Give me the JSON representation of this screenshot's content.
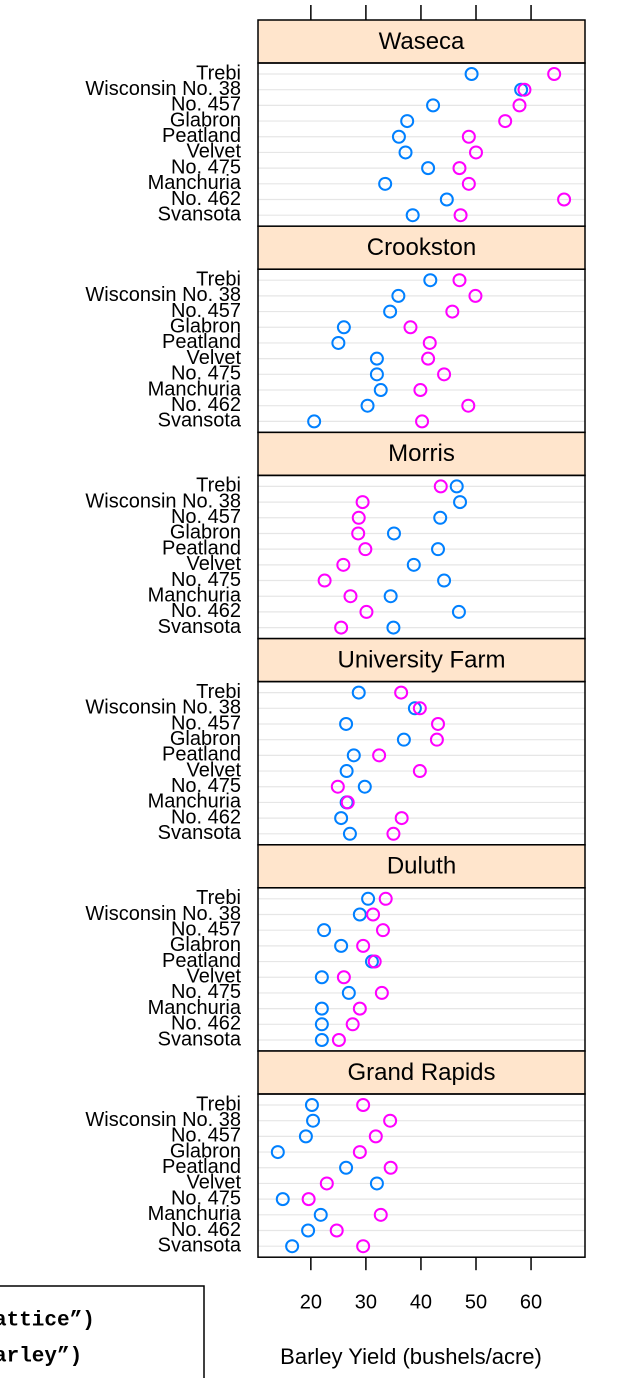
{
  "chart_data": {
    "type": "dotplot",
    "xlabel": "Barley Yield (bushels/acre)",
    "xlim": [
      10.4,
      69.8
    ],
    "xticks": [
      20,
      30,
      40,
      50,
      60
    ],
    "categories": [
      "Trebi",
      "Wisconsin No. 38",
      "No. 457",
      "Glabron",
      "Peatland",
      "Velvet",
      "No. 475",
      "Manchuria",
      "No. 462",
      "Svansota"
    ],
    "strip_color": "#ffe5cc",
    "grid": true,
    "panels": [
      {
        "title": "Waseca",
        "series": [
          {
            "color": "#0080ff",
            "values": [
              49.2,
              58.2,
              42.2,
              37.5,
              36,
              37.2,
              41.3,
              33.5,
              44.7,
              38.5
            ]
          },
          {
            "color": "#ff00ff",
            "values": [
              64.2,
              58.8,
              57.9,
              55.3,
              48.7,
              50,
              47,
              48.7,
              66,
              47.2
            ]
          }
        ]
      },
      {
        "title": "Crookston",
        "series": [
          {
            "color": "#0080ff",
            "values": [
              41.7,
              35.9,
              34.4,
              26,
              25,
              32,
              32,
              32.7,
              30.3,
              20.6
            ]
          },
          {
            "color": "#ff00ff",
            "values": [
              47,
              49.9,
              45.7,
              38.1,
              41.6,
              41.3,
              44.2,
              39.9,
              48.6,
              40.2
            ]
          }
        ]
      },
      {
        "title": "Morris",
        "series": [
          {
            "color": "#0080ff",
            "values": [
              46.5,
              47.1,
              43.5,
              35.1,
              43.1,
              38.7,
              44.2,
              34.5,
              46.9,
              35
            ]
          },
          {
            "color": "#ff00ff",
            "values": [
              43.6,
              29.4,
              28.7,
              28.6,
              29.9,
              25.9,
              22.5,
              27.2,
              30.1,
              25.5
            ]
          }
        ]
      },
      {
        "title": "University Farm",
        "series": [
          {
            "color": "#0080ff",
            "values": [
              28.7,
              38.9,
              26.4,
              36.9,
              27.8,
              26.5,
              29.8,
              26.5,
              25.5,
              27.1
            ]
          },
          {
            "color": "#ff00ff",
            "values": [
              36.4,
              39.8,
              43.1,
              42.9,
              32.4,
              39.8,
              24.9,
              26.7,
              36.5,
              35
            ]
          }
        ]
      },
      {
        "title": "Duluth",
        "series": [
          {
            "color": "#0080ff",
            "values": [
              30.4,
              28.9,
              22.4,
              25.5,
              31.1,
              22,
              26.9,
              22,
              22,
              22
            ]
          },
          {
            "color": "#ff00ff",
            "values": [
              33.6,
              31.3,
              33.1,
              29.5,
              31.6,
              26,
              32.9,
              28.9,
              27.6,
              25.1
            ]
          }
        ]
      },
      {
        "title": "Grand Rapids",
        "series": [
          {
            "color": "#0080ff",
            "values": [
              20.2,
              20.4,
              19.1,
              14,
              26.4,
              32,
              14.9,
              21.8,
              19.5,
              16.6
            ]
          },
          {
            "color": "#ff00ff",
            "values": [
              29.5,
              34.4,
              31.8,
              28.9,
              34.5,
              22.9,
              19.6,
              32.7,
              24.7,
              29.5
            ]
          }
        ]
      }
    ],
    "annotations": [
      "attice”)",
      "arley”)"
    ]
  }
}
